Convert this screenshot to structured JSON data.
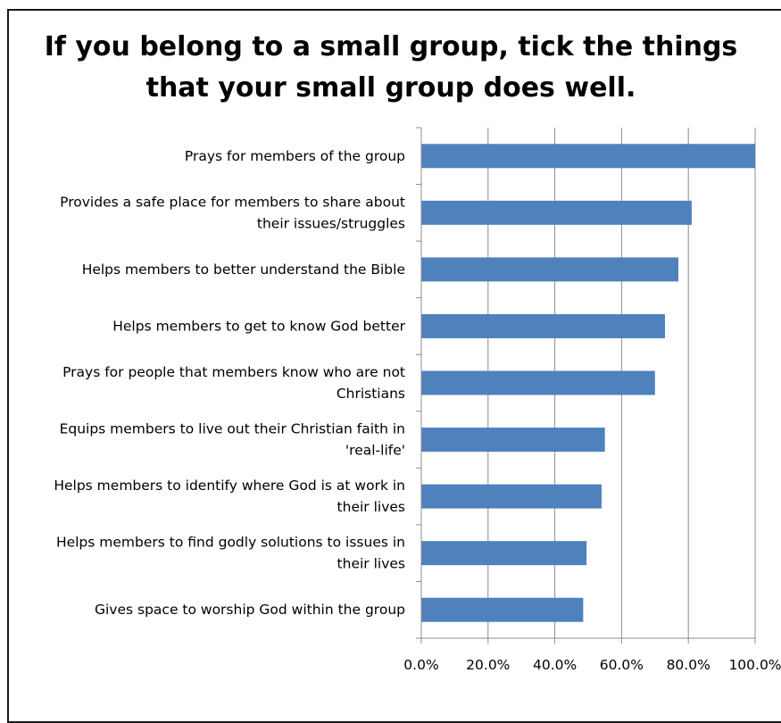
{
  "chart_data": {
    "type": "bar",
    "orientation": "horizontal",
    "title": "If you belong to a small group, tick the things\nthat your small group does well.",
    "categories": [
      "Prays for members of the group",
      "Provides a safe place for members to share about their issues/struggles",
      "Helps members to better understand the Bible",
      "Helps members to get to know God better",
      "Prays for people that members know who are not Christians",
      "Equips members to live out their Christian faith in 'real-life'",
      "Helps members to identify where God is at work in their lives",
      "Helps members to find godly solutions to issues in their lives",
      "Gives space to worship God within the group"
    ],
    "category_lines": [
      [
        "Prays for members of the group"
      ],
      [
        "Provides a safe place for members to share about",
        "their issues/struggles"
      ],
      [
        "Helps members to better understand the Bible"
      ],
      [
        "Helps members to get to know God better"
      ],
      [
        "Prays for people that members know who are not",
        "Christians"
      ],
      [
        "Equips members to live out their Christian faith in",
        "'real-life'"
      ],
      [
        "Helps members to identify where God is at work in",
        "their lives"
      ],
      [
        "Helps members to find godly solutions to issues in",
        "their lives"
      ],
      [
        "Gives space to worship God within the group"
      ]
    ],
    "series": [
      {
        "values": [
          1.0,
          0.81,
          0.77,
          0.73,
          0.7,
          0.55,
          0.54,
          0.495,
          0.485
        ],
        "color": "#4F81BD"
      }
    ],
    "xlim": [
      0,
      1.0
    ],
    "xticks": [
      0,
      0.2,
      0.4,
      0.6,
      0.8,
      1.0
    ],
    "xtick_labels": [
      "0.0%",
      "20.0%",
      "40.0%",
      "60.0%",
      "80.0%",
      "100.0%"
    ],
    "grid": "vertical",
    "legend": "none"
  }
}
